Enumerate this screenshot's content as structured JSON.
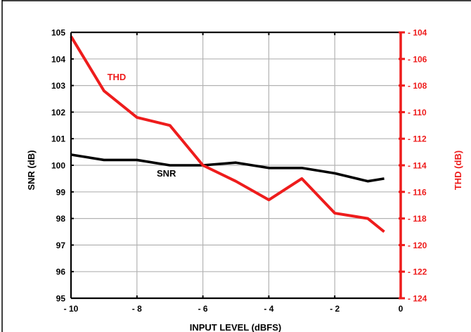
{
  "chart_data": {
    "type": "line",
    "xlabel": "INPUT LEVEL (dBFS)",
    "ylabel_left": "SNR (dB)",
    "ylabel_right": "THD (dB)",
    "xlim": [
      -10,
      0
    ],
    "ylim_left": [
      95,
      105
    ],
    "ylim_right": [
      -124,
      -104
    ],
    "grid": true,
    "x_ticks": [
      -10,
      -8,
      -6,
      -4,
      -2,
      0
    ],
    "x_tick_labels": [
      "- 10",
      "- 8",
      "- 6",
      "- 4",
      "- 2",
      "0"
    ],
    "y_left_ticks": [
      95,
      96,
      97,
      98,
      99,
      100,
      101,
      102,
      103,
      104,
      105
    ],
    "y_left_tick_labels": [
      "95",
      "96",
      "97",
      "98",
      "99",
      "100",
      "101",
      "102",
      "103",
      "104",
      "105"
    ],
    "y_right_ticks": [
      -104,
      -106,
      -108,
      -110,
      -112,
      -114,
      -116,
      -118,
      -120,
      -122,
      -124
    ],
    "y_right_tick_labels": [
      "- 104",
      "- 106",
      "- 108",
      "- 110",
      "- 112",
      "- 114",
      "- 116",
      "- 118",
      "- 120",
      "- 122",
      "- 124"
    ],
    "series": [
      {
        "name": "SNR",
        "axis": "left",
        "color": "#000000",
        "x": [
          -10,
          -9,
          -8,
          -7,
          -6,
          -5,
          -4,
          -3,
          -2,
          -1,
          -0.5
        ],
        "y": [
          100.4,
          100.2,
          100.2,
          100.0,
          100.0,
          100.1,
          99.9,
          99.9,
          99.7,
          99.4,
          99.5
        ]
      },
      {
        "name": "THD",
        "axis": "right",
        "color": "#ee1c1c",
        "x": [
          -10,
          -9,
          -8,
          -7,
          -6,
          -5,
          -4,
          -3,
          -2,
          -1,
          -0.5
        ],
        "y": [
          -104.3,
          -108.4,
          -110.4,
          -111.0,
          -114.0,
          -115.2,
          -116.6,
          -115.0,
          -117.6,
          -118.0,
          -119.0
        ]
      }
    ],
    "annotations": [
      {
        "text": "THD",
        "series": "THD",
        "x": -8.9,
        "y": -107.6
      },
      {
        "text": "SNR",
        "series": "SNR",
        "x": -7.4,
        "y": 99.58
      }
    ]
  }
}
